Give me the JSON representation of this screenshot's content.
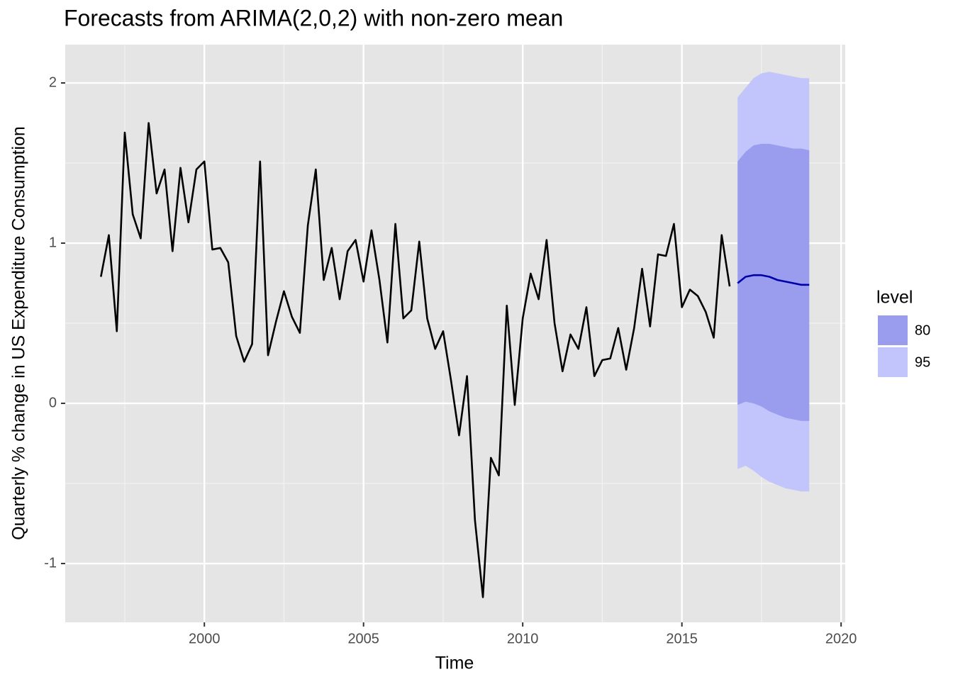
{
  "chart_data": {
    "type": "forecast",
    "title": "Forecasts from ARIMA(2,0,2) with non-zero mean",
    "xlabel": "Time",
    "ylabel": "Quarterly % change in US Expenditure Consumption",
    "x": [
      1996.75,
      1997,
      1997.25,
      1997.5,
      1997.75,
      1998,
      1998.25,
      1998.5,
      1998.75,
      1999,
      1999.25,
      1999.5,
      1999.75,
      2000,
      2000.25,
      2000.5,
      2000.75,
      2001,
      2001.25,
      2001.5,
      2001.75,
      2002,
      2002.25,
      2002.5,
      2002.75,
      2003,
      2003.25,
      2003.5,
      2003.75,
      2004,
      2004.25,
      2004.5,
      2004.75,
      2005,
      2005.25,
      2005.5,
      2005.75,
      2006,
      2006.25,
      2006.5,
      2006.75,
      2007,
      2007.25,
      2007.5,
      2007.75,
      2008,
      2008.25,
      2008.5,
      2008.75,
      2009,
      2009.25,
      2009.5,
      2009.75,
      2010,
      2010.25,
      2010.5,
      2010.75,
      2011,
      2011.25,
      2011.5,
      2011.75,
      2012,
      2012.25,
      2012.5,
      2012.75,
      2013,
      2013.25,
      2013.5,
      2013.75,
      2014,
      2014.25,
      2014.5,
      2014.75,
      2015,
      2015.25,
      2015.5,
      2015.75,
      2016,
      2016.25,
      2016.5
    ],
    "values": [
      0.79,
      1.05,
      0.45,
      1.69,
      1.18,
      1.03,
      1.75,
      1.31,
      1.46,
      0.95,
      1.47,
      1.13,
      1.46,
      1.51,
      0.96,
      0.97,
      0.88,
      0.42,
      0.26,
      0.37,
      1.51,
      0.3,
      0.51,
      0.7,
      0.54,
      0.44,
      1.11,
      1.46,
      0.77,
      0.97,
      0.65,
      0.95,
      1.02,
      0.76,
      1.08,
      0.77,
      0.38,
      1.12,
      0.53,
      0.58,
      1.01,
      0.53,
      0.34,
      0.45,
      0.14,
      -0.2,
      0.17,
      -0.73,
      -1.21,
      -0.34,
      -0.45,
      0.61,
      -0.01,
      0.53,
      0.81,
      0.65,
      1.02,
      0.5,
      0.2,
      0.43,
      0.34,
      0.6,
      0.17,
      0.27,
      0.28,
      0.47,
      0.21,
      0.47,
      0.84,
      0.48,
      0.93,
      0.92,
      1.12,
      0.6,
      0.71,
      0.67,
      0.57,
      0.41,
      1.05,
      0.73
    ],
    "color": "#000000",
    "forecast": {
      "x": [
        2016.75,
        2017,
        2017.25,
        2017.5,
        2017.75,
        2018,
        2018.25,
        2018.5,
        2018.75,
        2019
      ],
      "mean": [
        0.75,
        0.79,
        0.8,
        0.8,
        0.79,
        0.77,
        0.76,
        0.75,
        0.74,
        0.74
      ],
      "color": "#0000aa",
      "bands": [
        {
          "name": "80",
          "color": "#9a9ded",
          "lower": [
            -0.01,
            0.01,
            0.0,
            -0.02,
            -0.05,
            -0.07,
            -0.09,
            -0.1,
            -0.11,
            -0.11
          ],
          "upper": [
            1.51,
            1.57,
            1.61,
            1.62,
            1.62,
            1.61,
            1.6,
            1.59,
            1.59,
            1.58
          ]
        },
        {
          "name": "95",
          "color": "#c2c5fb",
          "lower": [
            -0.41,
            -0.39,
            -0.42,
            -0.46,
            -0.49,
            -0.51,
            -0.53,
            -0.54,
            -0.55,
            -0.55
          ],
          "upper": [
            1.91,
            1.97,
            2.03,
            2.06,
            2.07,
            2.06,
            2.05,
            2.04,
            2.03,
            2.03
          ]
        }
      ]
    },
    "legend_title": "level",
    "xlim": [
      1995.63,
      2020.13
    ],
    "xticks": [
      2000,
      2005,
      2010,
      2015,
      2020
    ],
    "ylim": [
      -1.367,
      2.239
    ],
    "yticks": [
      -1,
      0,
      1,
      2
    ],
    "grid": true
  }
}
